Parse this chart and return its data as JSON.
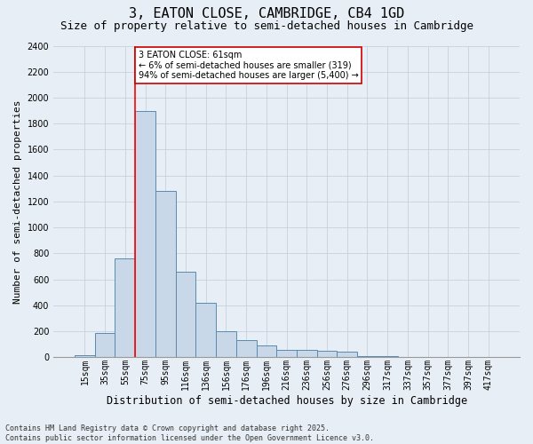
{
  "title": "3, EATON CLOSE, CAMBRIDGE, CB4 1GD",
  "subtitle": "Size of property relative to semi-detached houses in Cambridge",
  "xlabel": "Distribution of semi-detached houses by size in Cambridge",
  "ylabel": "Number of semi-detached properties",
  "categories": [
    "15sqm",
    "35sqm",
    "55sqm",
    "75sqm",
    "95sqm",
    "116sqm",
    "136sqm",
    "156sqm",
    "176sqm",
    "196sqm",
    "216sqm",
    "236sqm",
    "256sqm",
    "276sqm",
    "296sqm",
    "317sqm",
    "337sqm",
    "357sqm",
    "377sqm",
    "397sqm",
    "417sqm"
  ],
  "values": [
    15,
    190,
    760,
    1900,
    1280,
    660,
    420,
    200,
    130,
    90,
    60,
    55,
    50,
    45,
    10,
    8,
    5,
    3,
    2,
    1,
    0
  ],
  "bar_color": "#c8d8e8",
  "bar_edge_color": "#5a8ab0",
  "grid_color": "#c0ccd8",
  "bg_color": "#e8eef5",
  "red_line_index": 2,
  "annotation_text": "3 EATON CLOSE: 61sqm\n← 6% of semi-detached houses are smaller (319)\n94% of semi-detached houses are larger (5,400) →",
  "annotation_box_color": "#ffffff",
  "annotation_box_edge": "#cc0000",
  "footnote": "Contains HM Land Registry data © Crown copyright and database right 2025.\nContains public sector information licensed under the Open Government Licence v3.0.",
  "ylim": [
    0,
    2400
  ],
  "yticks": [
    0,
    200,
    400,
    600,
    800,
    1000,
    1200,
    1400,
    1600,
    1800,
    2000,
    2200,
    2400
  ],
  "title_fontsize": 11,
  "subtitle_fontsize": 9,
  "xlabel_fontsize": 8.5,
  "ylabel_fontsize": 8,
  "tick_fontsize": 7,
  "annotation_fontsize": 7,
  "footnote_fontsize": 6
}
